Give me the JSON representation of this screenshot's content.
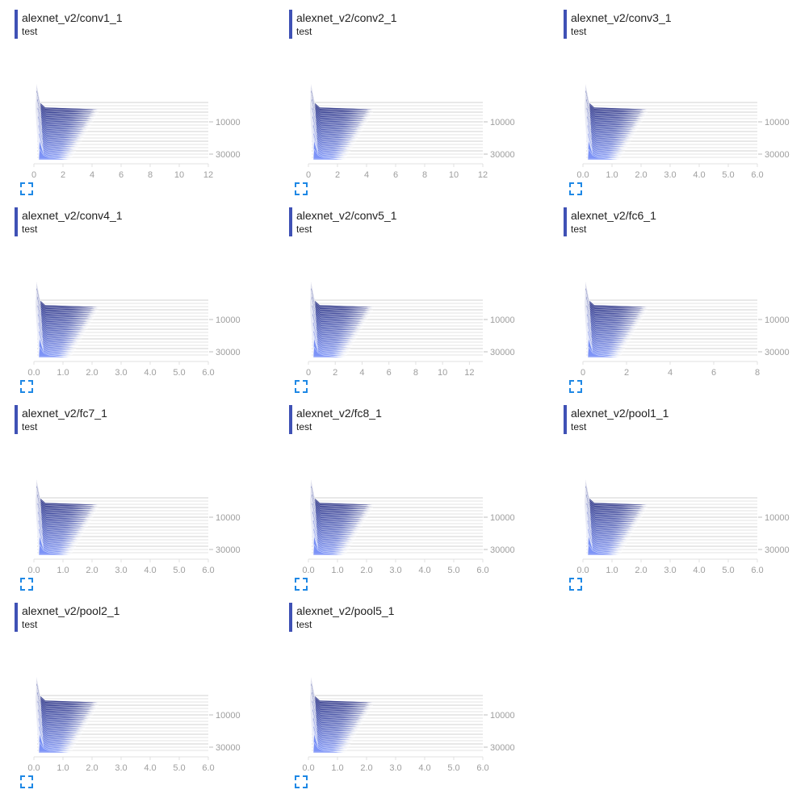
{
  "colors": {
    "accent": "#3f51b5",
    "older_steps": "#1a237e",
    "newer_steps": "#7c93f7",
    "expand_icon": "#1e88e5"
  },
  "cards": [
    {
      "title": "alexnet_v2/conv1_1",
      "run": "test",
      "chart_data": {
        "type": "histogram-offset",
        "x_ticks": [
          "0",
          "2",
          "4",
          "6",
          "8",
          "10",
          "12"
        ],
        "x_range": [
          0,
          12
        ],
        "step_ticks": [
          "10000",
          "30000"
        ]
      }
    },
    {
      "title": "alexnet_v2/conv2_1",
      "run": "test",
      "chart_data": {
        "type": "histogram-offset",
        "x_ticks": [
          "0",
          "2",
          "4",
          "6",
          "8",
          "10",
          "12"
        ],
        "x_range": [
          0,
          12
        ],
        "step_ticks": [
          "10000",
          "30000"
        ]
      }
    },
    {
      "title": "alexnet_v2/conv3_1",
      "run": "test",
      "chart_data": {
        "type": "histogram-offset",
        "x_ticks": [
          "0.0",
          "1.0",
          "2.0",
          "3.0",
          "4.0",
          "5.0",
          "6.0"
        ],
        "x_range": [
          0,
          6
        ],
        "step_ticks": [
          "10000",
          "30000"
        ]
      }
    },
    {
      "title": "alexnet_v2/conv4_1",
      "run": "test",
      "chart_data": {
        "type": "histogram-offset",
        "x_ticks": [
          "0.0",
          "1.0",
          "2.0",
          "3.0",
          "4.0",
          "5.0",
          "6.0"
        ],
        "x_range": [
          0,
          6
        ],
        "step_ticks": [
          "10000",
          "30000"
        ]
      }
    },
    {
      "title": "alexnet_v2/conv5_1",
      "run": "test",
      "chart_data": {
        "type": "histogram-offset",
        "x_ticks": [
          "0",
          "2",
          "4",
          "6",
          "8",
          "10",
          "12"
        ],
        "x_range": [
          0,
          13
        ],
        "step_ticks": [
          "10000",
          "30000"
        ]
      }
    },
    {
      "title": "alexnet_v2/fc6_1",
      "run": "test",
      "chart_data": {
        "type": "histogram-offset",
        "x_ticks": [
          "0",
          "2",
          "4",
          "6",
          "8"
        ],
        "x_range": [
          0,
          8
        ],
        "step_ticks": [
          "10000",
          "30000"
        ]
      }
    },
    {
      "title": "alexnet_v2/fc7_1",
      "run": "test",
      "chart_data": {
        "type": "histogram-offset",
        "x_ticks": [
          "0.0",
          "1.0",
          "2.0",
          "3.0",
          "4.0",
          "5.0",
          "6.0"
        ],
        "x_range": [
          0,
          6
        ],
        "step_ticks": [
          "10000",
          "30000"
        ]
      }
    },
    {
      "title": "alexnet_v2/fc8_1",
      "run": "test",
      "chart_data": {
        "type": "histogram-offset",
        "x_ticks": [
          "0.0",
          "1.0",
          "2.0",
          "3.0",
          "4.0",
          "5.0",
          "6.0"
        ],
        "x_range": [
          0,
          6
        ],
        "step_ticks": [
          "10000",
          "30000"
        ]
      }
    },
    {
      "title": "alexnet_v2/pool1_1",
      "run": "test",
      "chart_data": {
        "type": "histogram-offset",
        "x_ticks": [
          "0.0",
          "1.0",
          "2.0",
          "3.0",
          "4.0",
          "5.0",
          "6.0"
        ],
        "x_range": [
          0,
          6
        ],
        "step_ticks": [
          "10000",
          "30000"
        ]
      }
    },
    {
      "title": "alexnet_v2/pool2_1",
      "run": "test",
      "chart_data": {
        "type": "histogram-offset",
        "x_ticks": [
          "0.0",
          "1.0",
          "2.0",
          "3.0",
          "4.0",
          "5.0",
          "6.0"
        ],
        "x_range": [
          0,
          6
        ],
        "step_ticks": [
          "10000",
          "30000"
        ]
      }
    },
    {
      "title": "alexnet_v2/pool5_1",
      "run": "test",
      "chart_data": {
        "type": "histogram-offset",
        "x_ticks": [
          "0.0",
          "1.0",
          "2.0",
          "3.0",
          "4.0",
          "5.0",
          "6.0"
        ],
        "x_range": [
          0,
          6
        ],
        "step_ticks": [
          "10000",
          "30000"
        ]
      }
    }
  ]
}
